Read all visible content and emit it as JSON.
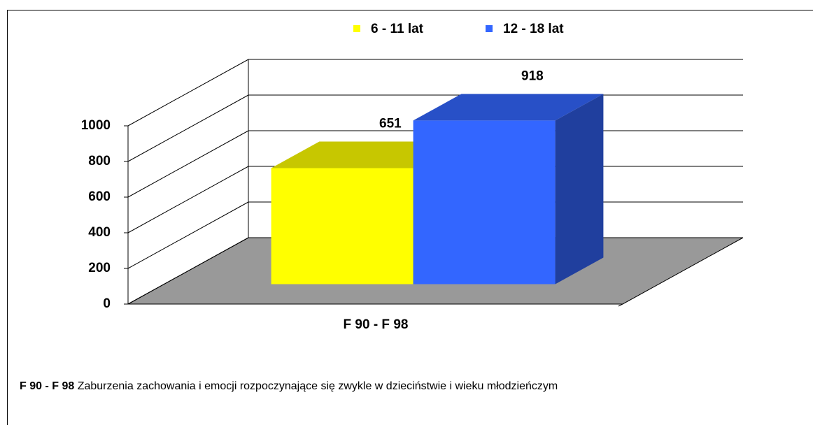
{
  "chart_data": {
    "type": "bar3d",
    "categories": [
      "F 90 - F 98"
    ],
    "series": [
      {
        "name": "6 - 11 lat",
        "color": "#ffff00",
        "values": [
          651
        ]
      },
      {
        "name": "12 - 18 lat",
        "color": "#3366ff",
        "values": [
          918
        ]
      }
    ],
    "ylim": [
      0,
      1000
    ],
    "yticks": [
      0,
      200,
      400,
      600,
      800,
      1000
    ],
    "grid": true,
    "legend": "top"
  },
  "footnote": {
    "label": "F 90 - F 98",
    "text": "Zaburzenia zachowania i emocji rozpoczynające się zwykle w dzieciństwie i wieku młodzieńczym"
  }
}
